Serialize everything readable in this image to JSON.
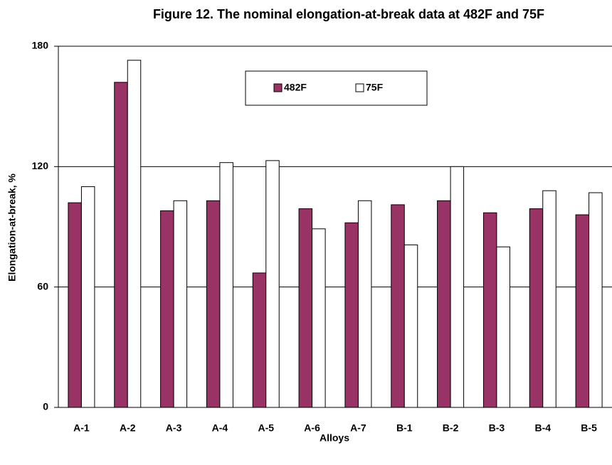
{
  "chart_data": {
    "type": "bar",
    "title": "Figure 12. The nominal elongation-at-break data at 482F and 75F",
    "x_label": "Alloys",
    "y_label": "Elongation-at-break, %",
    "categories": [
      "A-1",
      "A-2",
      "A-3",
      "A-4",
      "A-5",
      "A-6",
      "A-7",
      "B-1",
      "B-2",
      "B-3",
      "B-4",
      "B-5"
    ],
    "series": [
      {
        "name": "482F",
        "color": "#993366",
        "values": [
          102,
          162,
          98,
          103,
          67,
          99,
          92,
          101,
          103,
          97,
          99,
          96
        ]
      },
      {
        "name": "75F",
        "color": "#ffffff",
        "values": [
          110,
          173,
          103,
          122,
          123,
          89,
          103,
          81,
          120,
          80,
          108,
          107
        ]
      }
    ],
    "ylim": [
      0,
      180
    ],
    "yticks": [
      0,
      60,
      120,
      180
    ],
    "grid": true,
    "legend_position": "top"
  }
}
